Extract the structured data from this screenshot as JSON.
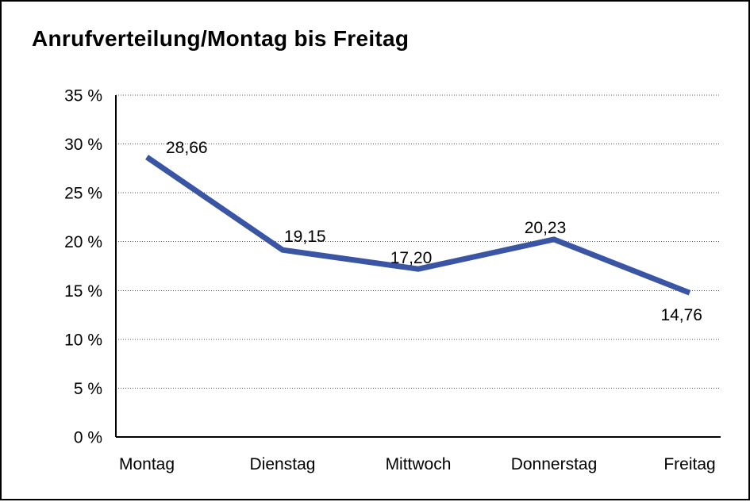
{
  "chart_data": {
    "type": "line",
    "title": "Anrufverteilung/Montag bis Freitag",
    "categories": [
      "Montag",
      "Dienstag",
      "Mittwoch",
      "Donnerstag",
      "Freitag"
    ],
    "series": [
      {
        "name": "Anrufverteilung",
        "values": [
          28.66,
          19.15,
          17.2,
          20.23,
          14.76
        ],
        "value_labels": [
          "28,66",
          "19,15",
          "17,20",
          "20,23",
          "14,76"
        ]
      }
    ],
    "xlabel": "",
    "ylabel": "",
    "ylim": [
      0,
      35
    ],
    "y_tick_step": 5,
    "y_tick_labels": [
      "0 %",
      "5 %",
      "10 %",
      "15 %",
      "20 %",
      "25 %",
      "30 %",
      "35 %"
    ],
    "grid": "horizontal-dotted",
    "legend_position": "none",
    "colors": {
      "line": "#3A55A4",
      "axis": "#000000",
      "grid": "#555555",
      "text": "#000000",
      "background": "#ffffff",
      "frame_border": "#000000"
    }
  }
}
